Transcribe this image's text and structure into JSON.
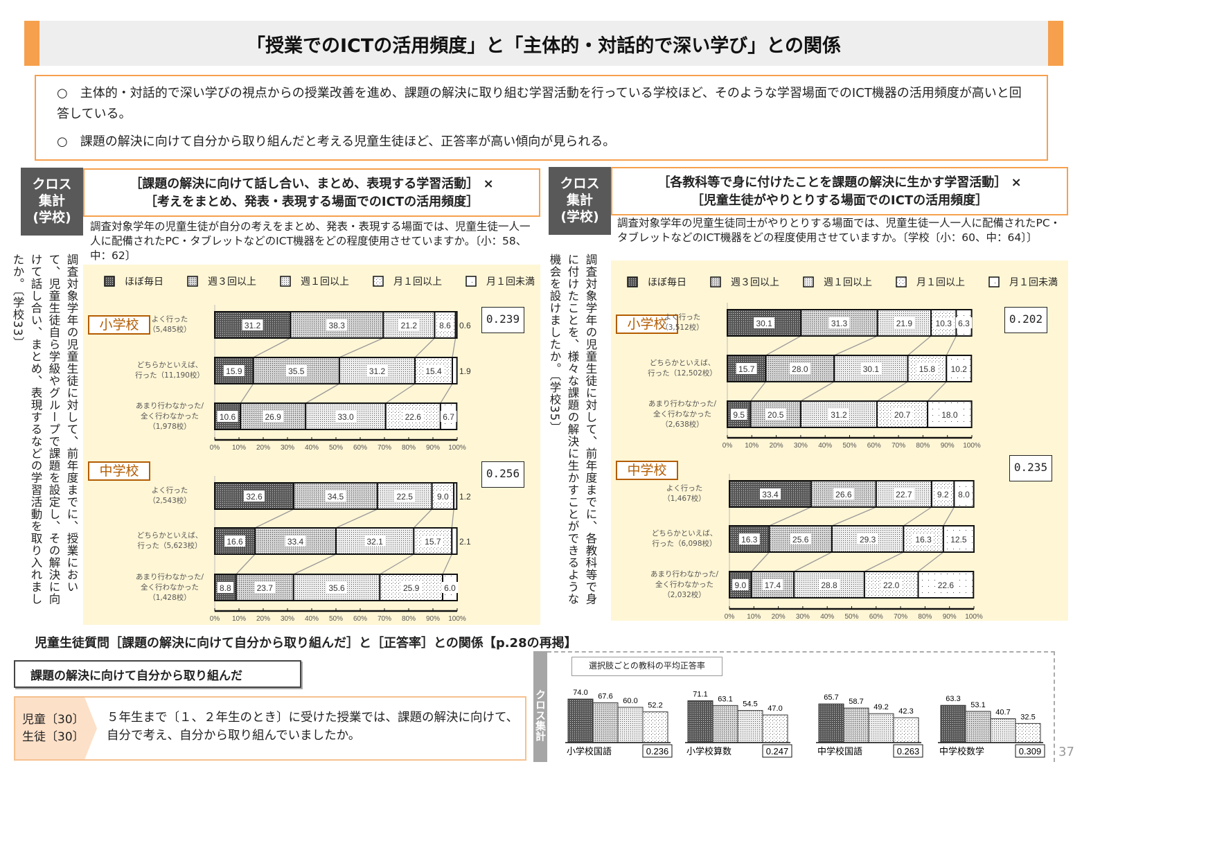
{
  "title": "「授業でのICTの活用頻度」と「主体的・対話的で深い学び」との関係",
  "summary": [
    "○　主体的・対話的で深い学びの視点からの授業改善を進め、課題の解決に取り組む学習活動を行っている学校ほど、そのような学習場面でのICT機器の活用頻度が高いと回答している。",
    "○　課題の解決に向けて自分から取り組んだと考える児童生徒ほど、正答率が高い傾向が見られる。"
  ],
  "colors": {
    "accent": "#f6a04d",
    "cross_bg": "#595959",
    "chart_bg": "#fff6d5",
    "school_label": "#b35c00"
  },
  "legend": [
    "ほぼ毎日",
    "週３回以上",
    "週１回以上",
    "月１回以上",
    "月１回未満"
  ],
  "axis_ticks": [
    "0%",
    "10%",
    "20%",
    "30%",
    "40%",
    "50%",
    "60%",
    "70%",
    "80%",
    "90%",
    "100%"
  ],
  "left_panel": {
    "cross_label": "クロス\n集計\n(学校)",
    "heading1": "［課題の解決に向けて話し合い、まとめ、表現する学習活動］ ×",
    "heading2": "［考えをまとめ、発表・表現する場面でのICTの活用頻度］",
    "question": "調査対象学年の児童生徒が自分の考えをまとめ、発表・表現する場面では、児童生徒一人一人に配備されたPC・タブレットなどのICT機器をどの程度使用させていますか。〔小：58、中：62〕",
    "vertical_question": "調査対象学年の児童生徒に対して、前年度までに、授業において、児童生徒自ら学級やグループで課題を設定し、その解決に向けて話し合い、まとめ、表現するなどの学習活動を取り入れましたか。〔学校33〕"
  },
  "right_panel": {
    "cross_label": "クロス\n集計\n(学校)",
    "heading1": "［各教科等で身に付けたことを課題の解決に生かす学習活動］ ×",
    "heading2": "［児童生徒がやりとりする場面でのICTの活用頻度］",
    "question": "調査対象学年の児童生徒同士がやりとりする場面では、児童生徒一人一人に配備されたPC・タブレットなどのICT機器をどの程度使用させていますか。〔学校〔小：60、中：64〕〕",
    "vertical_question": "調査対象学年の児童生徒に対して、前年度までに、各教科等で身に付けたことを、様々な課題の解決に生かすことができるような機会を設けましたか。〔学校35〕"
  },
  "chart_data": [
    {
      "type": "bar",
      "stacked": true,
      "orientation": "horizontal",
      "panel": "left",
      "school": "小学校",
      "correlation": "0.239",
      "xlim": [
        0,
        100
      ],
      "categories": [
        "よく行った\n（5,485校）",
        "どちらかといえば、\n行った（11,190校）",
        "あまり行わなかった/\n全く行わなかった\n（1,978校）"
      ],
      "series": [
        {
          "name": "ほぼ毎日",
          "values": [
            31.2,
            15.9,
            10.6
          ]
        },
        {
          "name": "週３回以上",
          "values": [
            38.3,
            35.5,
            26.9
          ]
        },
        {
          "name": "週１回以上",
          "values": [
            21.2,
            31.2,
            33.0
          ]
        },
        {
          "name": "月１回以上",
          "values": [
            8.6,
            15.4,
            22.6
          ]
        },
        {
          "name": "月１回未満",
          "values": [
            0.6,
            1.9,
            6.7
          ]
        }
      ]
    },
    {
      "type": "bar",
      "stacked": true,
      "orientation": "horizontal",
      "panel": "left",
      "school": "中学校",
      "correlation": "0.256",
      "xlim": [
        0,
        100
      ],
      "categories": [
        "よく行った\n（2,543校）",
        "どちらかといえば、\n行った（5,623校）",
        "あまり行わなかった/\n全く行わなかった\n（1,428校）"
      ],
      "series": [
        {
          "name": "ほぼ毎日",
          "values": [
            32.6,
            16.6,
            8.8
          ]
        },
        {
          "name": "週３回以上",
          "values": [
            34.5,
            33.4,
            23.7
          ]
        },
        {
          "name": "週１回以上",
          "values": [
            22.5,
            32.1,
            35.6
          ]
        },
        {
          "name": "月１回以上",
          "values": [
            9.0,
            15.7,
            25.9
          ]
        },
        {
          "name": "月１回未満",
          "values": [
            1.2,
            2.1,
            6.0
          ]
        }
      ]
    },
    {
      "type": "bar",
      "stacked": true,
      "orientation": "horizontal",
      "panel": "right",
      "school": "小学校",
      "correlation": "0.202",
      "xlim": [
        0,
        100
      ],
      "categories": [
        "よく行った\n（3,512校）",
        "どちらかといえば、\n行った（12,502校）",
        "あまり行わなかった/\n全く行わなかった\n（2,638校）"
      ],
      "series": [
        {
          "name": "ほぼ毎日",
          "values": [
            30.1,
            15.7,
            9.5
          ]
        },
        {
          "name": "週３回以上",
          "values": [
            31.3,
            28.0,
            20.5
          ]
        },
        {
          "name": "週１回以上",
          "values": [
            21.9,
            30.1,
            31.2
          ]
        },
        {
          "name": "月１回以上",
          "values": [
            10.3,
            15.8,
            20.7
          ]
        },
        {
          "name": "月１回未満",
          "values": [
            6.3,
            10.2,
            18.0
          ]
        }
      ]
    },
    {
      "type": "bar",
      "stacked": true,
      "orientation": "horizontal",
      "panel": "right",
      "school": "中学校",
      "correlation": "0.235",
      "xlim": [
        0,
        100
      ],
      "categories": [
        "よく行った\n（1,467校）",
        "どちらかといえば、\n行った（6,098校）",
        "あまり行わなかった/\n全く行わなかった\n（2,032校）"
      ],
      "series": [
        {
          "name": "ほぼ毎日",
          "values": [
            33.4,
            16.3,
            9.0
          ]
        },
        {
          "name": "週３回以上",
          "values": [
            26.6,
            25.6,
            17.4
          ]
        },
        {
          "name": "週１回以上",
          "values": [
            22.7,
            29.3,
            28.8
          ]
        },
        {
          "name": "月１回以上",
          "values": [
            9.2,
            16.3,
            22.0
          ]
        },
        {
          "name": "月１回未満",
          "values": [
            8.0,
            12.5,
            22.6
          ]
        }
      ]
    },
    {
      "type": "bar",
      "title": "選択肢ごとの教科の平均正答率",
      "groups": [
        {
          "label": "小学校国語",
          "values": [
            74.0,
            67.6,
            60.0,
            52.2
          ],
          "correlation": "0.236"
        },
        {
          "label": "小学校算数",
          "values": [
            71.1,
            63.1,
            54.5,
            47.0
          ],
          "correlation": "0.247"
        },
        {
          "label": "中学校国語",
          "values": [
            65.7,
            58.7,
            49.2,
            42.3
          ],
          "correlation": "0.263"
        },
        {
          "label": "中学校数学",
          "values": [
            63.3,
            53.1,
            40.7,
            32.5
          ],
          "correlation": "0.309"
        }
      ]
    }
  ],
  "bottom": {
    "heading": "児童生徒質問［課題の解決に向けて自分から取り組んだ］と［正答率］との関係【p.28の再掲】",
    "self_box": "課題の解決に向けて自分から取り組んだ",
    "tag": "児童〔30〕\n生徒〔30〕",
    "question": "５年生まで〔１、２年生のとき〕に受けた授業では、課題の解決に向けて、自分で考え、自分から取り組んでいましたか。",
    "cross_strip": "クロス集計",
    "page": "37"
  }
}
